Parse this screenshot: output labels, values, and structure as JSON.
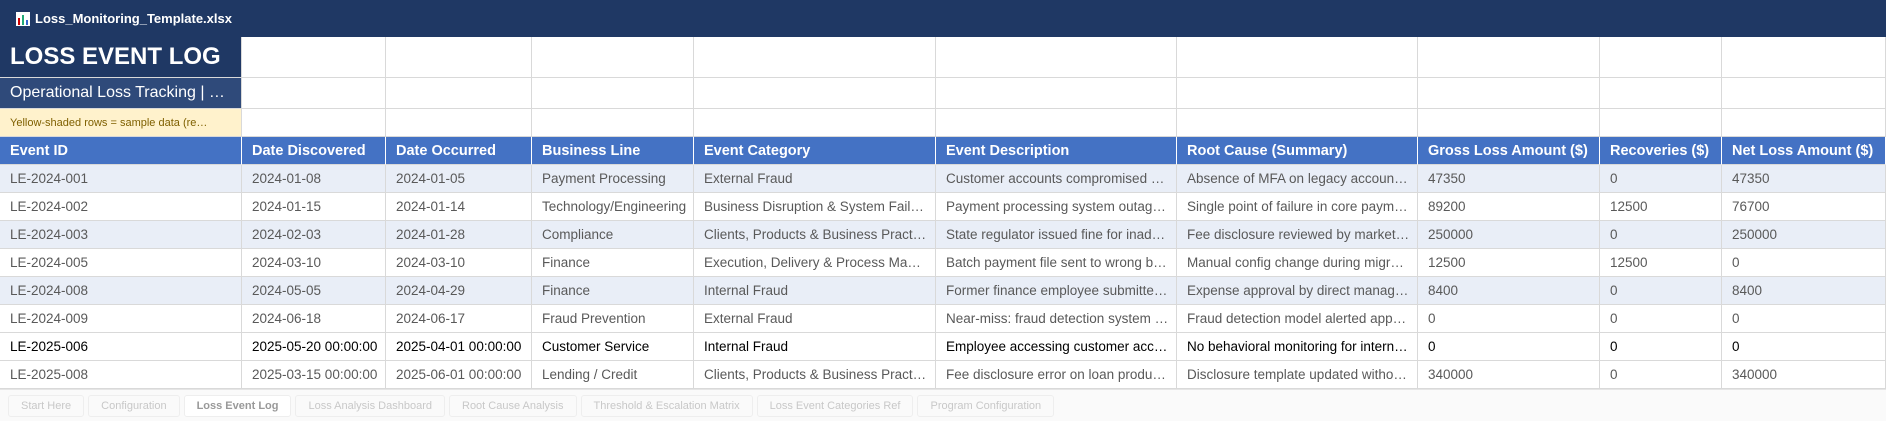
{
  "window": {
    "title": "Loss_Monitoring_Template.xlsx"
  },
  "sheet": {
    "title": "LOSS EVENT LOG",
    "subtitle": "Operational Loss Tracking | …",
    "note": "Yellow-shaded rows = sample data (re…",
    "columns": [
      "Event ID",
      "Date Discovered",
      "Date Occurred",
      "Business Line",
      "Event Category",
      "Event Description",
      "Root Cause (Summary)",
      "Gross Loss Amount ($)",
      "Recoveries ($)",
      "Net Loss Amount ($)"
    ],
    "rows": [
      [
        "LE-2024-001",
        "2024-01-08",
        "2024-01-05",
        "Payment Processing",
        "External Fraud",
        "Customer accounts compromised …",
        "Absence of MFA on legacy accoun…",
        "47350",
        "0",
        "47350"
      ],
      [
        "LE-2024-002",
        "2024-01-15",
        "2024-01-14",
        "Technology/Engineering",
        "Business Disruption & System Fail…",
        "Payment processing system outag…",
        "Single point of failure in core paym…",
        "89200",
        "12500",
        "76700"
      ],
      [
        "LE-2024-003",
        "2024-02-03",
        "2024-01-28",
        "Compliance",
        "Clients, Products & Business Pract…",
        "State regulator issued fine for inad…",
        "Fee disclosure reviewed by market…",
        "250000",
        "0",
        "250000"
      ],
      [
        "LE-2024-005",
        "2024-03-10",
        "2024-03-10",
        "Finance",
        "Execution, Delivery & Process Ma…",
        "Batch payment file sent to wrong b…",
        "Manual config change during migr…",
        "12500",
        "12500",
        "0"
      ],
      [
        "LE-2024-008",
        "2024-05-05",
        "2024-04-29",
        "Finance",
        "Internal Fraud",
        "Former finance employee submitte…",
        "Expense approval by direct manag…",
        "8400",
        "0",
        "8400"
      ],
      [
        "LE-2024-009",
        "2024-06-18",
        "2024-06-17",
        "Fraud Prevention",
        "External Fraud",
        "Near-miss: fraud detection system …",
        "Fraud detection model alerted app…",
        "0",
        "0",
        "0"
      ],
      [
        "LE-2025-006",
        "2025-05-20 00:00:00",
        "2025-04-01 00:00:00",
        "Customer Service",
        "Internal Fraud",
        "Employee accessing customer acc…",
        "No behavioral monitoring for intern…",
        "0",
        "0",
        "0"
      ],
      [
        "LE-2025-008",
        "2025-03-15 00:00:00",
        "2025-06-01 00:00:00",
        "Lending / Credit",
        "Clients, Products & Business Pract…",
        "Fee disclosure error on loan produ…",
        "Disclosure template updated witho…",
        "340000",
        "0",
        "340000"
      ]
    ]
  },
  "tabs": [
    "Start Here",
    "Configuration",
    "Loss Event Log",
    "Loss Analysis Dashboard",
    "Root Cause Analysis",
    "Threshold & Escalation Matrix",
    "Loss Event Categories Ref",
    "Program Configuration"
  ]
}
